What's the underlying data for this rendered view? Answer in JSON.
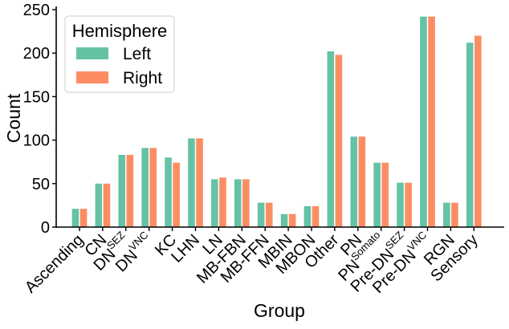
{
  "chart_data": {
    "type": "bar",
    "xlabel": "Group",
    "ylabel": "Count",
    "ylim": [
      0,
      250
    ],
    "yticks": [
      0,
      50,
      100,
      150,
      200,
      250
    ],
    "grid": false,
    "legend_title": "Hemisphere",
    "legend_position": "top-left",
    "categories": [
      {
        "base": "Ascending",
        "sup": ""
      },
      {
        "base": "CN",
        "sup": ""
      },
      {
        "base": "DN",
        "sup": "SEZ"
      },
      {
        "base": "DN",
        "sup": "VNC"
      },
      {
        "base": "KC",
        "sup": ""
      },
      {
        "base": "LHN",
        "sup": ""
      },
      {
        "base": "LN",
        "sup": ""
      },
      {
        "base": "MB-FBN",
        "sup": ""
      },
      {
        "base": "MB-FFN",
        "sup": ""
      },
      {
        "base": "MBIN",
        "sup": ""
      },
      {
        "base": "MBON",
        "sup": ""
      },
      {
        "base": "Other",
        "sup": ""
      },
      {
        "base": "PN",
        "sup": ""
      },
      {
        "base": "PN",
        "sup": "Somato"
      },
      {
        "base": "Pre-DN",
        "sup": "SEZ"
      },
      {
        "base": "Pre-DN",
        "sup": "VNC"
      },
      {
        "base": "RGN",
        "sup": ""
      },
      {
        "base": "Sensory",
        "sup": ""
      }
    ],
    "series": [
      {
        "name": "Left",
        "color": "#66c2a5",
        "values": [
          21,
          50,
          83,
          91,
          80,
          102,
          55,
          55,
          28,
          15,
          24,
          202,
          104,
          74,
          51,
          242,
          28,
          212
        ]
      },
      {
        "name": "Right",
        "color": "#fc8d62",
        "values": [
          21,
          50,
          83,
          91,
          74,
          102,
          57,
          55,
          28,
          15,
          24,
          198,
          104,
          74,
          51,
          242,
          28,
          220
        ]
      }
    ]
  }
}
